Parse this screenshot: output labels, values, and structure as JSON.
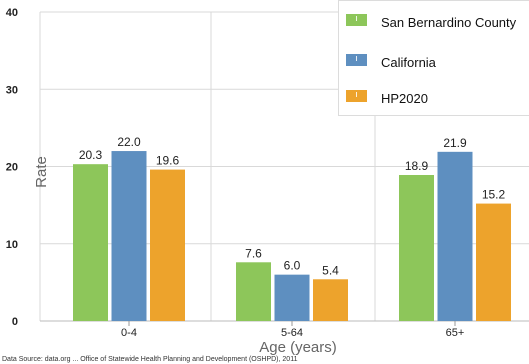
{
  "chart_data": {
    "type": "bar",
    "categories": [
      "0-4",
      "5-64",
      "65+"
    ],
    "series": [
      {
        "name": "San Bernardino County",
        "values": [
          20.3,
          7.6,
          18.9
        ],
        "labels": [
          "20.3",
          "7.6",
          "18.9"
        ],
        "color": "#8dc65a"
      },
      {
        "name": "California",
        "values": [
          22.0,
          6.0,
          21.9
        ],
        "labels": [
          "22.0",
          "6.0",
          "21.9"
        ],
        "color": "#5e8fc0"
      },
      {
        "name": "HP2020",
        "values": [
          19.6,
          5.4,
          15.2
        ],
        "labels": [
          "19.6",
          "5.4",
          "15.2"
        ],
        "color": "#eda32c"
      }
    ],
    "ylim": [
      0,
      40
    ],
    "yticks": [
      "0",
      "10",
      "20",
      "30",
      "40"
    ],
    "xlabel": "Age (years)",
    "ylabel": "Rate",
    "grid": true,
    "legend_position": "top-right"
  },
  "source_note": "Data Source: data.org ... Office of Statewide Health Planning and Development (OSHPD), 2011"
}
